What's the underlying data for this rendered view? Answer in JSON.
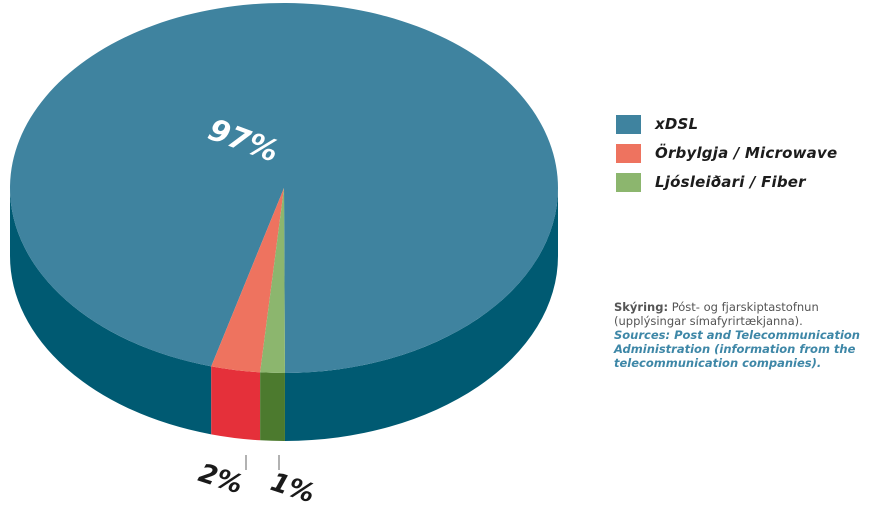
{
  "chart_data": {
    "type": "pie",
    "slices": [
      {
        "name": "xDSL",
        "value": 97,
        "label": "97%",
        "color": "#3f839f",
        "side_color": "#005a72"
      },
      {
        "name": "Örbylgja / Microwave",
        "value": 2,
        "label": "2%",
        "color": "#ee735f",
        "side_color": "#e5303a"
      },
      {
        "name": "Ljósleiðari / Fiber",
        "value": 1,
        "label": "1%",
        "color": "#8cb66e",
        "side_color": "#4c7a2e"
      }
    ],
    "legend": {
      "placement": "right",
      "items": [
        {
          "label": "xDSL",
          "color": "#3f839f"
        },
        {
          "label": "Örbylgja  /  Microwave",
          "color": "#ee735f"
        },
        {
          "label": "Ljósleiðari  /  Fiber",
          "color": "#8cb66e"
        }
      ]
    }
  },
  "source": {
    "label": "Skýring:",
    "text": "Póst- og fjarskiptastofnun (upplýsingar símafyrirtækjanna).",
    "english": "Sources: Post and Telecommunication Administration (information from the telecommunication companies)."
  }
}
